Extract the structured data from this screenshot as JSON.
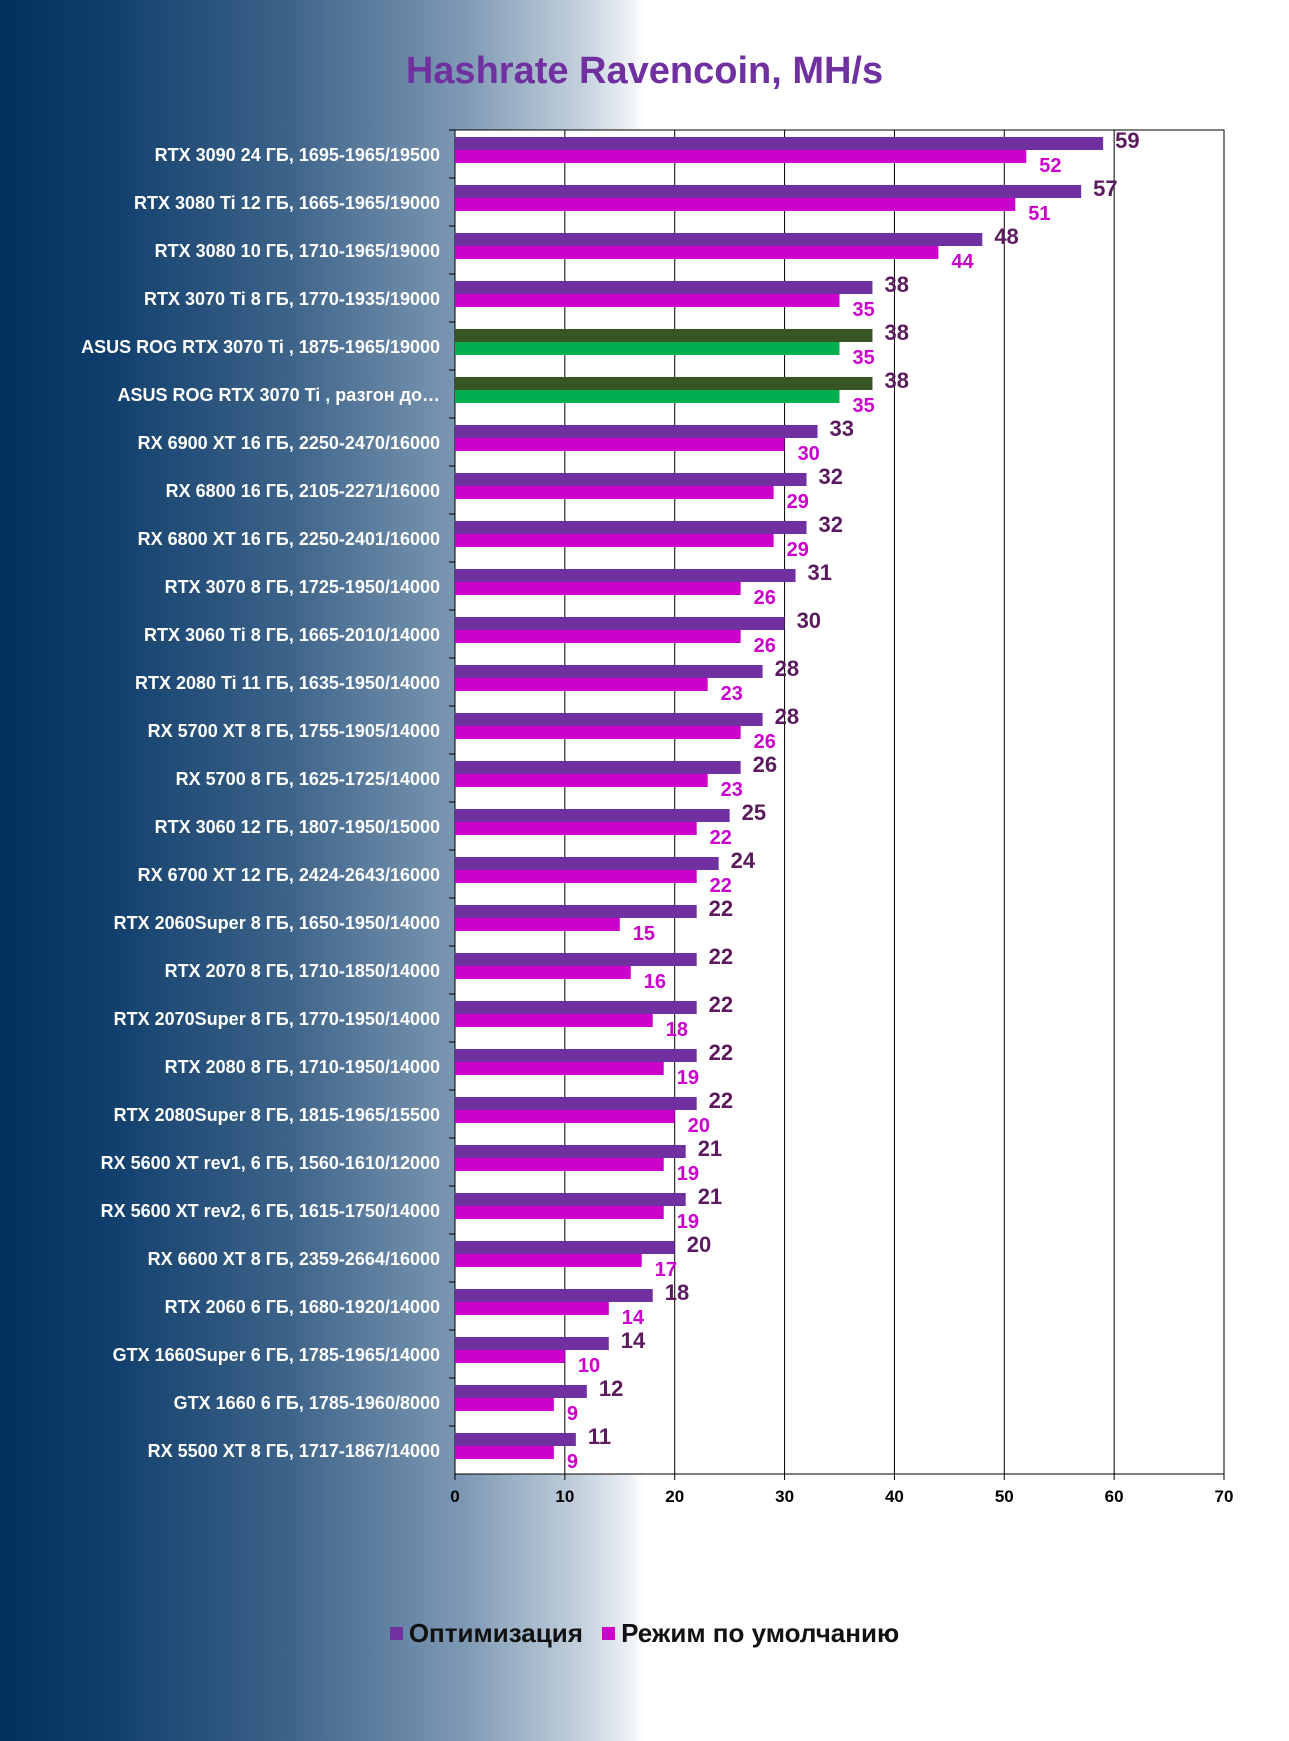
{
  "chart_data": {
    "type": "bar",
    "orientation": "horizontal",
    "title": "Hashrate Ravencoin, MH/s",
    "xlim": [
      0,
      70
    ],
    "xticks": [
      0,
      10,
      20,
      30,
      40,
      50,
      60,
      70
    ],
    "grid": true,
    "legend_position": "bottom",
    "categories": [
      "RTX 3090 24 ГБ, 1695-1965/19500",
      "RTX 3080 Ti 12 ГБ, 1665-1965/19000",
      "RTX 3080 10 ГБ, 1710-1965/19000",
      "RTX 3070 Ti 8 ГБ, 1770-1935/19000",
      "ASUS ROG RTX 3070 Ti , 1875-1965/19000",
      "ASUS ROG RTX 3070 Ti , разгон до…",
      "RX 6900 XT 16 ГБ, 2250-2470/16000",
      "RX 6800 16 ГБ, 2105-2271/16000",
      "RX 6800 XT 16 ГБ, 2250-2401/16000",
      "RTX 3070 8 ГБ, 1725-1950/14000",
      "RTX 3060 Ti 8 ГБ, 1665-2010/14000",
      "RTX 2080 Ti 11 ГБ, 1635-1950/14000",
      "RX 5700 XT 8 ГБ, 1755-1905/14000",
      "RX 5700 8 ГБ, 1625-1725/14000",
      "RTX 3060 12 ГБ, 1807-1950/15000",
      "RX 6700 XT 12 ГБ, 2424-2643/16000",
      "RTX 2060Super 8 ГБ, 1650-1950/14000",
      "RTX 2070 8 ГБ, 1710-1850/14000",
      "RTX 2070Super 8 ГБ, 1770-1950/14000",
      "RTX 2080 8 ГБ, 1710-1950/14000",
      "RTX 2080Super 8 ГБ, 1815-1965/15500",
      "RX 5600 XT rev1, 6 ГБ, 1560-1610/12000",
      "RX 5600 XT rev2, 6 ГБ, 1615-1750/14000",
      "RX 6600 XT 8 ГБ, 2359-2664/16000",
      "RTX 2060 6 ГБ, 1680-1920/14000",
      "GTX 1660Super 6 ГБ, 1785-1965/14000",
      "GTX 1660 6 ГБ, 1785-1960/8000",
      "RX 5500 XT 8 ГБ, 1717-1867/14000"
    ],
    "highlighted_categories": [
      4,
      5
    ],
    "series": [
      {
        "name": "Оптимизация",
        "color": "#7030a0",
        "highlight_color": "#375623",
        "label_color": "#5b1a5e",
        "values": [
          59,
          57,
          48,
          38,
          38,
          38,
          33,
          32,
          32,
          31,
          30,
          28,
          28,
          26,
          25,
          24,
          22,
          22,
          22,
          22,
          22,
          21,
          21,
          20,
          18,
          14,
          12,
          11
        ]
      },
      {
        "name": "Режим по умолчанию",
        "color": "#cc00cc",
        "highlight_color": "#00b050",
        "label_color": "#cc00cc",
        "values": [
          52,
          51,
          44,
          35,
          35,
          35,
          30,
          29,
          29,
          26,
          26,
          23,
          26,
          23,
          22,
          22,
          15,
          16,
          18,
          19,
          20,
          19,
          19,
          17,
          14,
          10,
          9,
          9
        ]
      }
    ]
  }
}
